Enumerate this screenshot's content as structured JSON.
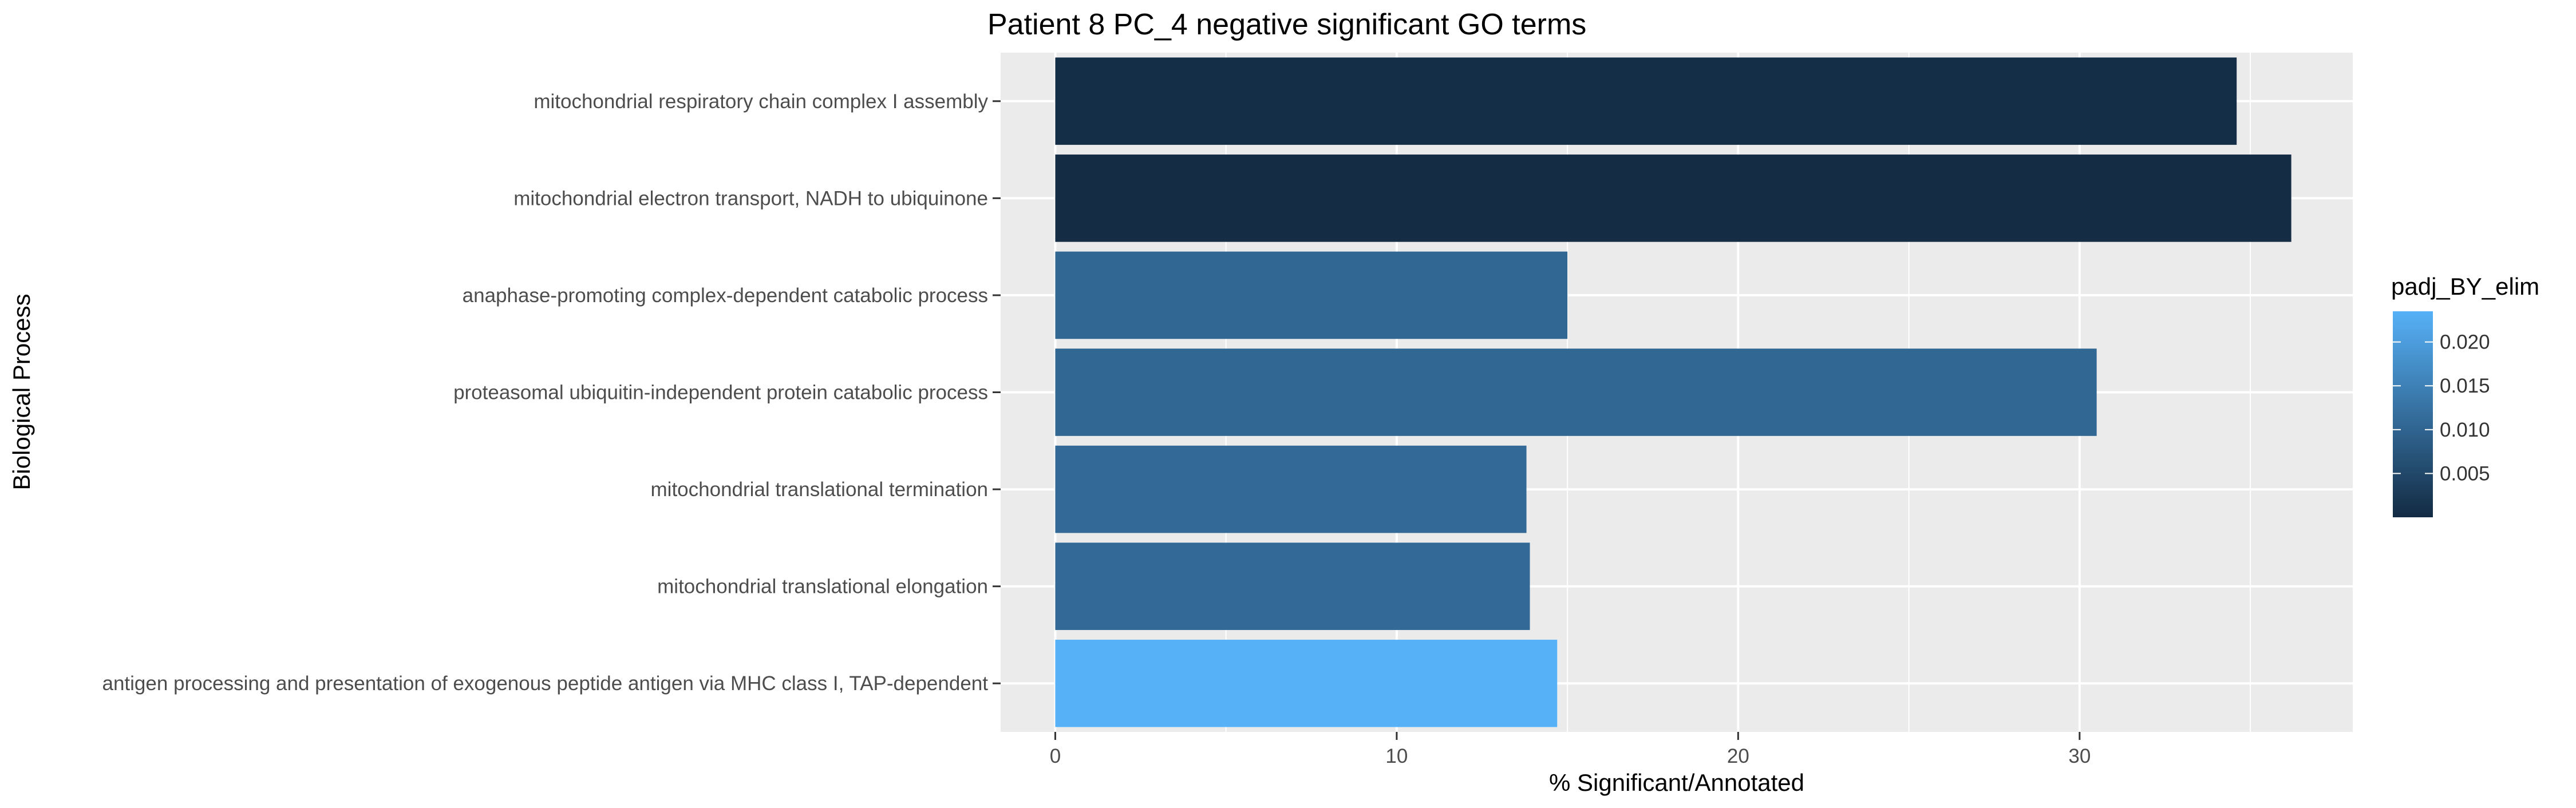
{
  "chart_data": {
    "type": "bar",
    "orientation": "horizontal",
    "title": "Patient 8 PC_4 negative significant GO terms",
    "xlabel": "% Significant/Annotated",
    "ylabel": "Biological Process",
    "xlim": [
      -1.6,
      38.0
    ],
    "xticks": [
      0,
      10,
      20,
      30
    ],
    "grid": true,
    "categories": [
      "mitochondrial respiratory chain complex I assembly",
      "mitochondrial electron transport, NADH to ubiquinone",
      "anaphase-promoting complex-dependent catabolic process",
      "proteasomal ubiquitin-independent protein catabolic process",
      "mitochondrial translational termination",
      "mitochondrial translational elongation",
      "antigen processing and presentation of exogenous peptide antigen via MHC class I, TAP-dependent"
    ],
    "values": [
      34.6,
      36.2,
      15.0,
      30.5,
      13.8,
      13.9,
      14.7
    ],
    "color_values": [
      0.0005,
      0.0003,
      0.0105,
      0.0105,
      0.0108,
      0.0108,
      0.0235
    ],
    "legend": {
      "title": "padj_BY_elim",
      "position": "right",
      "ticks": [
        0.005,
        0.01,
        0.015,
        0.02
      ],
      "tick_labels": [
        "0.005",
        "0.010",
        "0.015",
        "0.020"
      ],
      "range": [
        0.0,
        0.0235
      ],
      "low_color": "#132b43",
      "high_color": "#56b1f7"
    },
    "panel_background": "#ebebeb",
    "grid_color": "#ffffff"
  }
}
